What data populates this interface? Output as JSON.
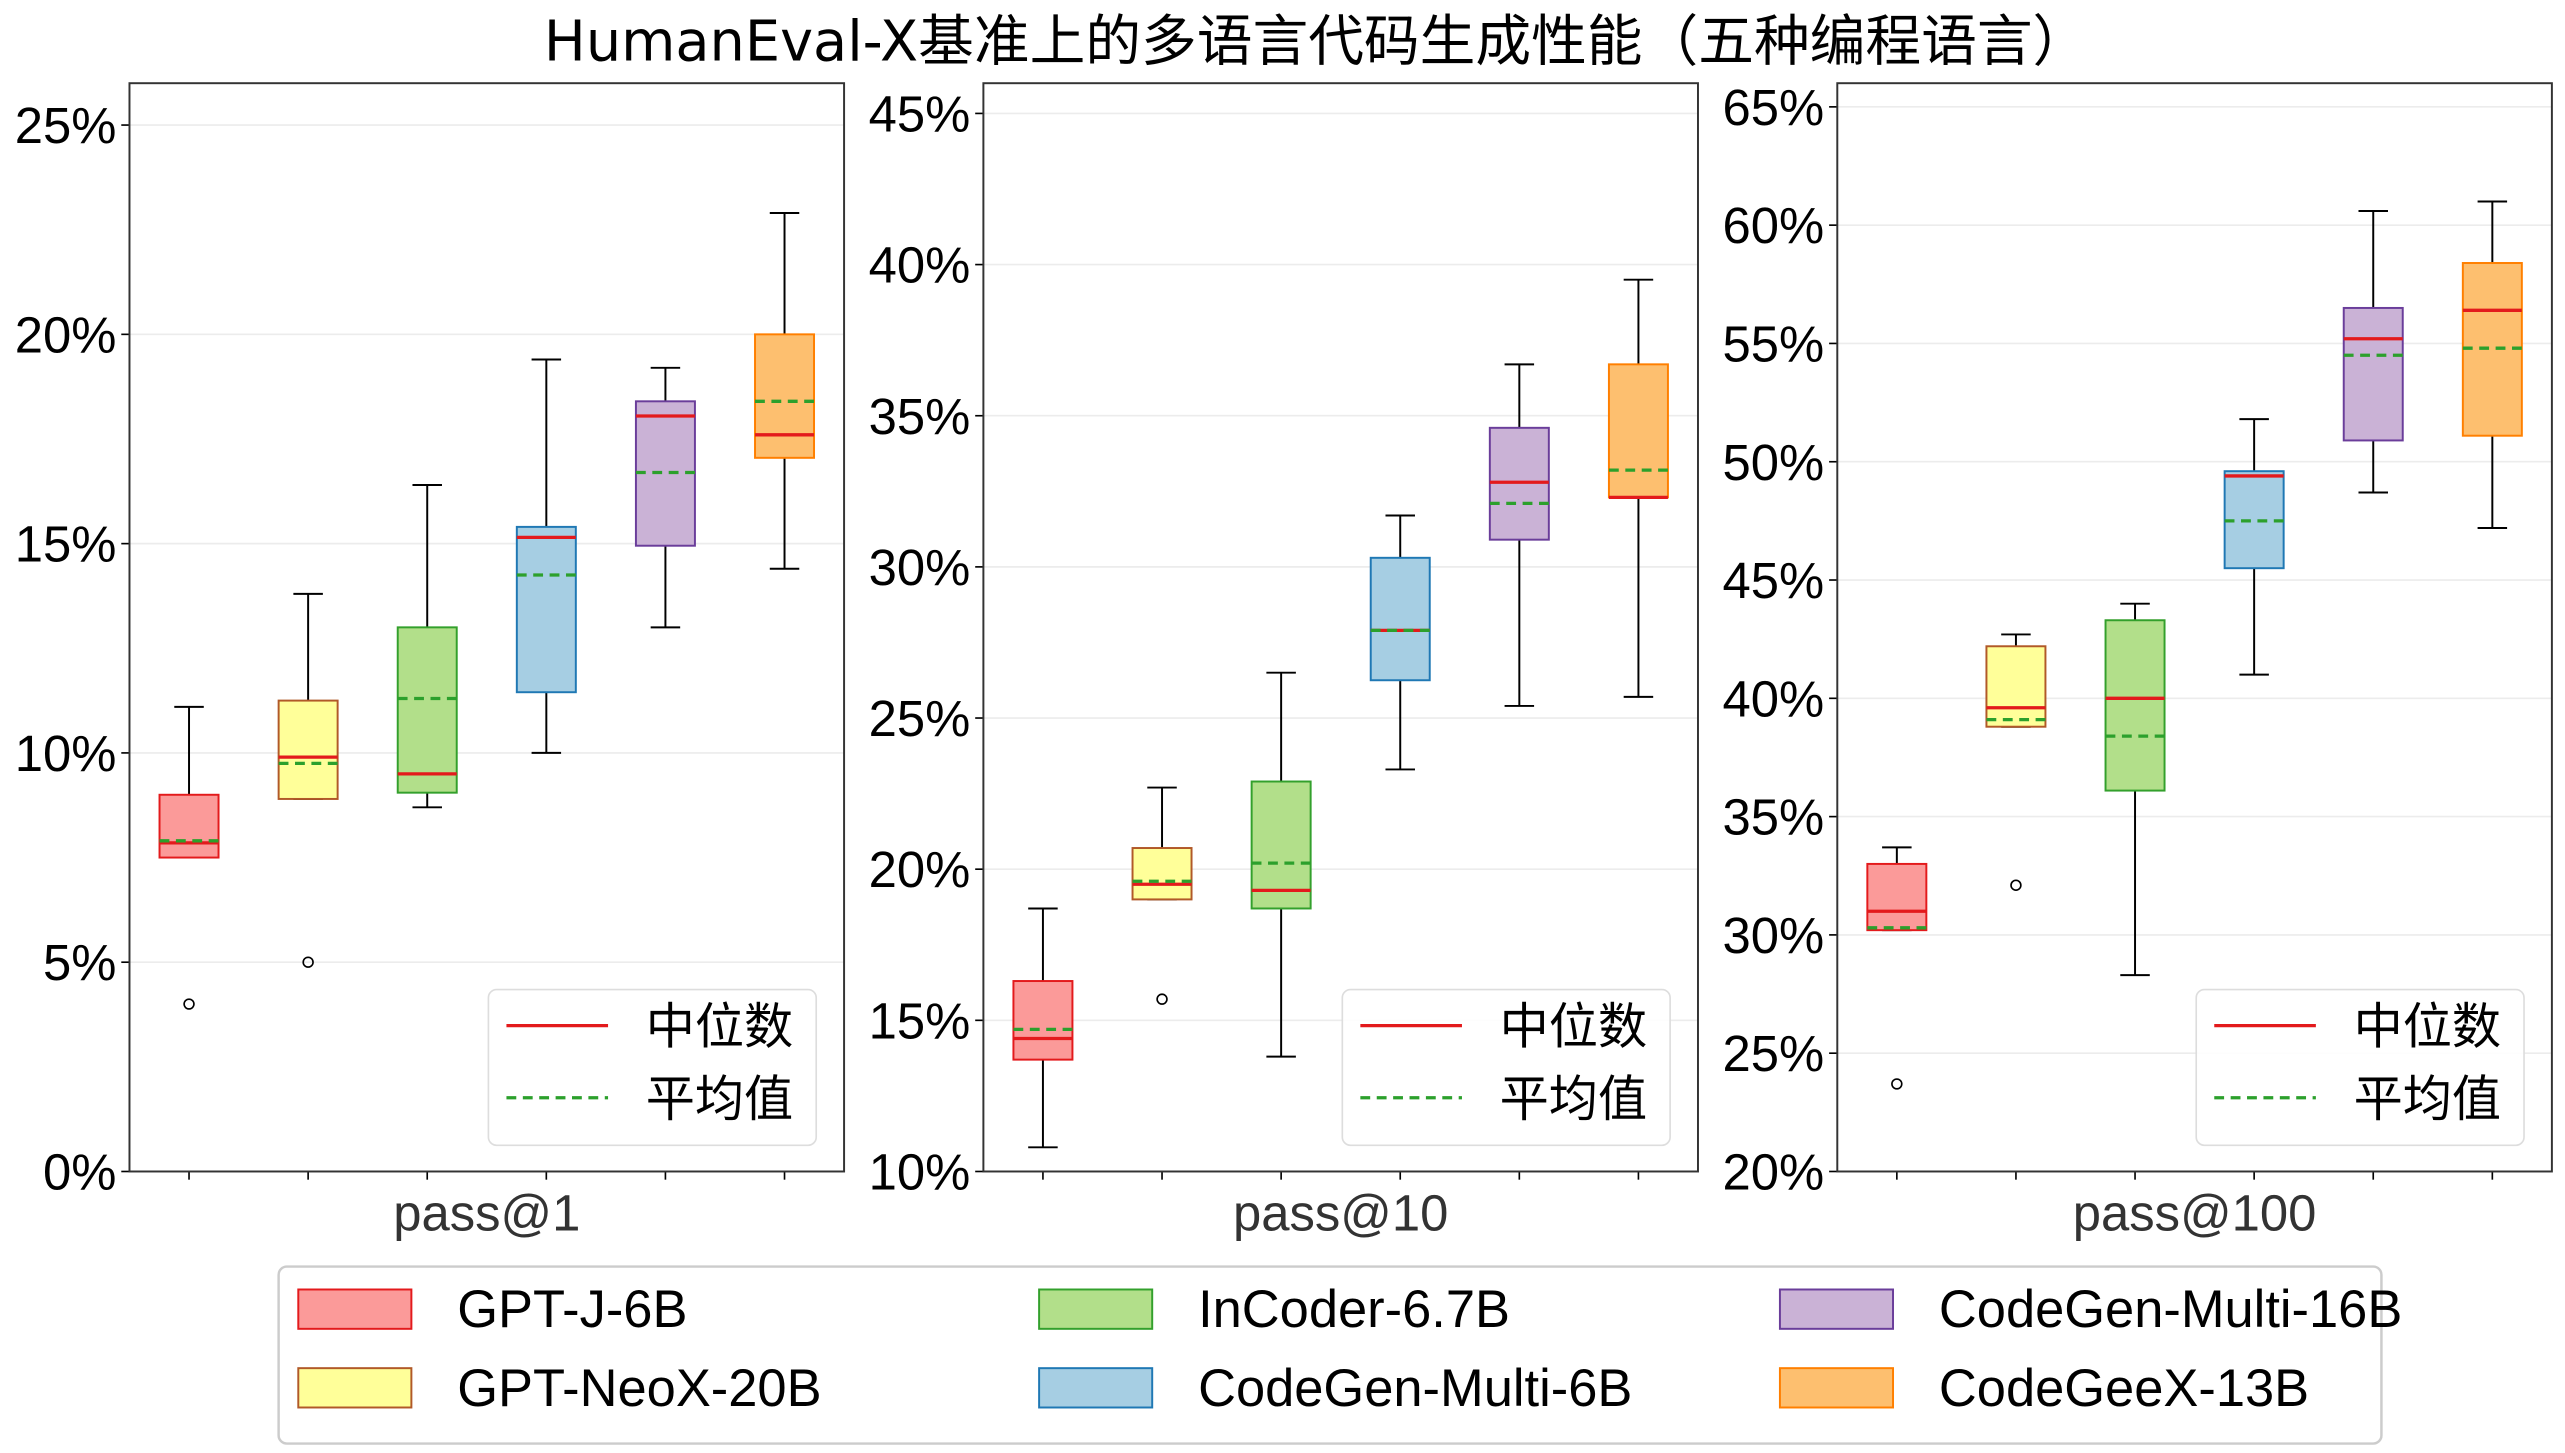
{
  "chart_data": {
    "type": "box",
    "title": "HumanEval-X基准上的多语言代码生成性能（五种编程语言）",
    "legend_placement": "bottom",
    "grid": true,
    "series": [
      {
        "name": "GPT-J-6B",
        "fill": "#fb9a99",
        "edge": "#e31a1c"
      },
      {
        "name": "GPT-NeoX-20B",
        "fill": "#ffff99",
        "edge": "#b15928"
      },
      {
        "name": "InCoder-6.7B",
        "fill": "#b2df8a",
        "edge": "#33a02c"
      },
      {
        "name": "CodeGen-Multi-6B",
        "fill": "#a6cee3",
        "edge": "#1f78b4"
      },
      {
        "name": "CodeGen-Multi-16B",
        "fill": "#cab2d6",
        "edge": "#6a3d9a"
      },
      {
        "name": "CodeGeeX-13B",
        "fill": "#fdbf6f",
        "edge": "#ff7f00"
      }
    ],
    "inset_legend": {
      "median": "中位数",
      "mean": "平均值",
      "median_color": "#e31a1c",
      "mean_color": "#2ca02c"
    },
    "panels": [
      {
        "xlabel": "pass@1",
        "ylim": [
          0,
          26
        ],
        "yticks": [
          0,
          5,
          10,
          15,
          20,
          25
        ],
        "ytick_labels": [
          "0%",
          "5%",
          "10%",
          "15%",
          "20%",
          "25%"
        ],
        "boxes": [
          {
            "low": 7.5,
            "q1": 7.5,
            "median": 7.85,
            "mean": 7.9,
            "q3": 9.0,
            "high": 11.1,
            "outliers": [
              4.0
            ]
          },
          {
            "low": 8.9,
            "q1": 8.9,
            "median": 9.9,
            "mean": 9.75,
            "q3": 11.25,
            "high": 13.8,
            "outliers": [
              5.0
            ]
          },
          {
            "low": 8.7,
            "q1": 9.05,
            "median": 9.5,
            "mean": 11.3,
            "q3": 13.0,
            "high": 16.4,
            "outliers": []
          },
          {
            "low": 10.0,
            "q1": 11.45,
            "median": 15.15,
            "mean": 14.25,
            "q3": 15.4,
            "high": 19.4,
            "outliers": []
          },
          {
            "low": 13.0,
            "q1": 14.95,
            "median": 18.05,
            "mean": 16.7,
            "q3": 18.4,
            "high": 19.2,
            "outliers": []
          },
          {
            "low": 14.4,
            "q1": 17.05,
            "median": 17.6,
            "mean": 18.4,
            "q3": 20.0,
            "high": 22.9,
            "outliers": []
          }
        ]
      },
      {
        "xlabel": "pass@10",
        "ylim": [
          10,
          46
        ],
        "yticks": [
          10,
          15,
          20,
          25,
          30,
          35,
          40,
          45
        ],
        "ytick_labels": [
          "10%",
          "15%",
          "20%",
          "25%",
          "30%",
          "35%",
          "40%",
          "45%"
        ],
        "boxes": [
          {
            "low": 10.8,
            "q1": 13.7,
            "median": 14.4,
            "mean": 14.7,
            "q3": 16.3,
            "high": 18.7,
            "outliers": []
          },
          {
            "low": 19.0,
            "q1": 19.0,
            "median": 19.5,
            "mean": 19.6,
            "q3": 20.7,
            "high": 22.7,
            "outliers": [
              15.7
            ]
          },
          {
            "low": 13.8,
            "q1": 18.7,
            "median": 19.3,
            "mean": 20.2,
            "q3": 22.9,
            "high": 26.5,
            "outliers": []
          },
          {
            "low": 23.3,
            "q1": 26.25,
            "median": 27.9,
            "mean": 27.9,
            "q3": 30.3,
            "high": 31.7,
            "outliers": []
          },
          {
            "low": 25.4,
            "q1": 30.9,
            "median": 32.8,
            "mean": 32.1,
            "q3": 34.6,
            "high": 36.7,
            "outliers": []
          },
          {
            "low": 25.7,
            "q1": 32.3,
            "median": 32.3,
            "mean": 33.2,
            "q3": 36.7,
            "high": 39.5,
            "outliers": []
          }
        ]
      },
      {
        "xlabel": "pass@100",
        "ylim": [
          20,
          66
        ],
        "yticks": [
          20,
          25,
          30,
          35,
          40,
          45,
          50,
          55,
          60,
          65
        ],
        "ytick_labels": [
          "20%",
          "25%",
          "30%",
          "35%",
          "40%",
          "45%",
          "50%",
          "55%",
          "60%",
          "65%"
        ],
        "boxes": [
          {
            "low": 30.2,
            "q1": 30.2,
            "median": 31.0,
            "mean": 30.3,
            "q3": 33.0,
            "high": 33.7,
            "outliers": [
              23.7
            ]
          },
          {
            "low": 38.8,
            "q1": 38.8,
            "median": 39.6,
            "mean": 39.1,
            "q3": 42.2,
            "high": 42.7,
            "outliers": [
              32.1
            ]
          },
          {
            "low": 28.3,
            "q1": 36.1,
            "median": 40.0,
            "mean": 38.4,
            "q3": 43.3,
            "high": 44.0,
            "outliers": []
          },
          {
            "low": 41.0,
            "q1": 45.5,
            "median": 49.4,
            "mean": 47.5,
            "q3": 49.6,
            "high": 51.8,
            "outliers": []
          },
          {
            "low": 48.7,
            "q1": 50.9,
            "median": 55.2,
            "mean": 54.5,
            "q3": 56.5,
            "high": 60.6,
            "outliers": []
          },
          {
            "low": 47.2,
            "q1": 51.1,
            "median": 56.4,
            "mean": 54.8,
            "q3": 58.4,
            "high": 61.0,
            "outliers": []
          }
        ]
      }
    ]
  }
}
